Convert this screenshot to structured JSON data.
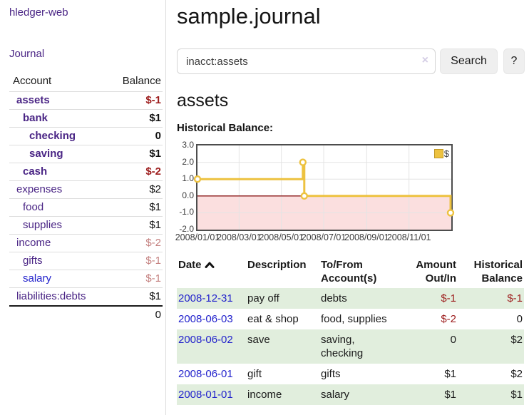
{
  "sidebar": {
    "brand": "hledger-web",
    "journal_link": "Journal",
    "accounts": {
      "col_account": "Account",
      "col_balance": "Balance",
      "rows": [
        {
          "name": "assets",
          "balance": "$-1"
        },
        {
          "name": "bank",
          "balance": "$1"
        },
        {
          "name": "checking",
          "balance": "0"
        },
        {
          "name": "saving",
          "balance": "$1"
        },
        {
          "name": "cash",
          "balance": "$-2"
        },
        {
          "name": "expenses",
          "balance": "$2"
        },
        {
          "name": "food",
          "balance": "$1"
        },
        {
          "name": "supplies",
          "balance": "$1"
        },
        {
          "name": "income",
          "balance": "$-2"
        },
        {
          "name": "gifts",
          "balance": "$-1"
        },
        {
          "name": "salary",
          "balance": "$-1"
        },
        {
          "name": "liabilities:debts",
          "balance": "$1"
        }
      ],
      "total": "0"
    }
  },
  "header": {
    "title": "sample.journal"
  },
  "search": {
    "value": "inacct:assets",
    "clear_glyph": "×",
    "search_button": "Search",
    "help_button": "?"
  },
  "account_page": {
    "heading": "assets",
    "chart_title": "Historical Balance:"
  },
  "chart_data": {
    "type": "line",
    "step": true,
    "title": "Historical Balance:",
    "series": [
      {
        "name": "$",
        "color": "#EDC240",
        "points": [
          [
            "2008-01-01",
            1
          ],
          [
            "2008-06-01",
            2
          ],
          [
            "2008-06-03",
            0
          ],
          [
            "2008-12-31",
            -1
          ]
        ]
      }
    ],
    "xlim": [
      "2008-01-01",
      "2009-01-01"
    ],
    "ylim": [
      -2,
      3
    ],
    "yticks": [
      3,
      2,
      1,
      0,
      -1,
      -2
    ],
    "ytick_labels": [
      "3.0",
      "2.0",
      "1.0",
      "0.0",
      "-1.0",
      "-2.0"
    ],
    "xtick_dates": [
      "2008-01-01",
      "2008-03-01",
      "2008-05-01",
      "2008-07-01",
      "2008-09-01",
      "2008-11-01"
    ],
    "xtick_labels": [
      "2008/01/01",
      "2008/03/01",
      "2008/05/01",
      "2008/07/01",
      "2008/09/01",
      "2008/11/01"
    ],
    "legend_position": "top-right",
    "grid": true,
    "grid_color": "#e4e4e4",
    "negative_fill": "#fbdfdf",
    "zero_line_color": "#8b1a1a"
  },
  "register": {
    "headers": {
      "date": "Date",
      "description": "Description",
      "accounts": "To/From Account(s)",
      "amount": "Amount Out/In",
      "balance": "Historical Balance"
    },
    "rows": [
      {
        "date": "2008-12-31",
        "description": "pay off",
        "accounts": "debts",
        "amount": "$-1",
        "balance": "$-1"
      },
      {
        "date": "2008-06-03",
        "description": "eat & shop",
        "accounts": "food, supplies",
        "amount": "$-2",
        "balance": "0"
      },
      {
        "date": "2008-06-02",
        "description": "save",
        "accounts": "saving, checking",
        "amount": "0",
        "balance": "$2"
      },
      {
        "date": "2008-06-01",
        "description": "gift",
        "accounts": "gifts",
        "amount": "$1",
        "balance": "$2"
      },
      {
        "date": "2008-01-01",
        "description": "income",
        "accounts": "salary",
        "amount": "$1",
        "balance": "$1"
      }
    ]
  }
}
